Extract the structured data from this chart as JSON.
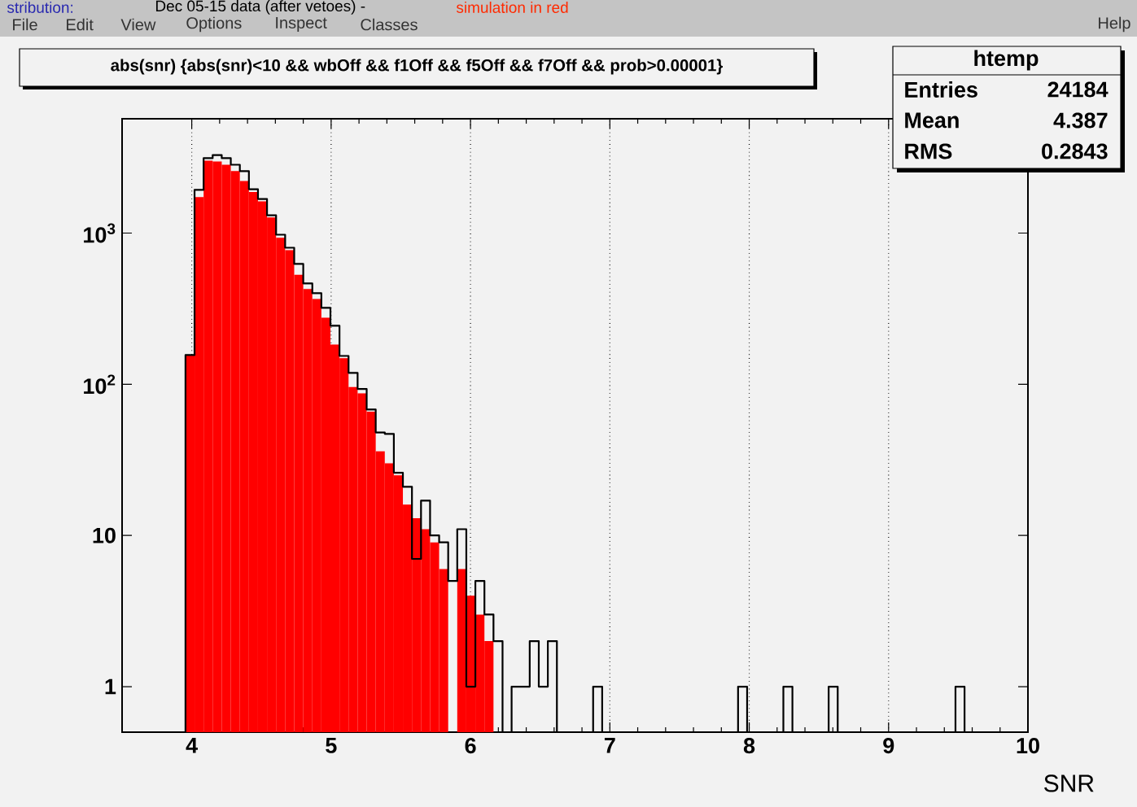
{
  "chart_data": {
    "type": "histogram",
    "title": "abs(snr) {abs(snr)<10 && wbOff && f1Off && f5Off && f7Off && prob>0.00001}",
    "xlabel": "SNR",
    "annotations": [
      "stribution:",
      "Dec 05-15 data (after vetoes) -",
      "simulation in red",
      "File",
      "Edit",
      "View",
      "Options",
      "Inspect",
      "Classes",
      "Help",
      "htemp",
      "Entries",
      "24184",
      "Mean",
      "4.387",
      "RMS",
      "0.2843"
    ],
    "bins": [
      3.955,
      4.02,
      4.085,
      4.15,
      4.215,
      4.28,
      4.345,
      4.41,
      4.475,
      4.54,
      4.605,
      4.67,
      4.735,
      4.8,
      4.865,
      4.93,
      4.995,
      5.06,
      5.125,
      5.19,
      5.255,
      5.32,
      5.385,
      5.45,
      5.515,
      5.58,
      5.645,
      5.71,
      5.775,
      5.84,
      5.905,
      5.97,
      6.035,
      6.1,
      6.165,
      6.23,
      6.295,
      6.36,
      6.425,
      6.49,
      6.555,
      6.62,
      6.685,
      6.75,
      6.815,
      6.88,
      6.945,
      7.01,
      7.075,
      7.14,
      7.205,
      7.27,
      7.335,
      7.4,
      7.465,
      7.53,
      7.595,
      7.66,
      7.725,
      7.79,
      7.855,
      7.92,
      7.985,
      8.05,
      8.115,
      8.18,
      8.245,
      8.31,
      8.375,
      8.44,
      8.505,
      8.57,
      8.635,
      8.7,
      8.765,
      8.83,
      8.895,
      8.96,
      9.025,
      9.09,
      9.155,
      9.22,
      9.285,
      9.35,
      9.415,
      9.48,
      9.545
    ],
    "series": [
      {
        "color": "#ff0000",
        "values": [
          156,
          1730,
          3010,
          2970,
          2830,
          2570,
          2210,
          1870,
          1620,
          1270,
          930,
          770,
          530,
          426,
          367,
          276,
          183,
          149,
          96,
          87,
          66,
          36,
          30,
          25,
          16,
          13,
          11,
          9,
          6,
          null,
          6,
          4,
          3,
          2,
          null,
          null,
          null,
          null,
          null,
          null,
          null,
          null,
          null,
          null,
          null,
          null,
          null,
          null,
          null,
          null,
          null,
          null,
          null,
          null,
          null,
          null,
          null,
          null,
          null,
          null,
          null,
          null,
          null,
          null,
          null,
          null,
          null,
          null,
          null,
          null,
          null,
          null,
          null,
          null,
          null,
          null,
          null,
          null,
          null,
          null,
          null,
          null,
          null,
          null,
          null,
          null
        ]
      },
      {
        "color": "#000000",
        "values": [
          156,
          1930,
          3130,
          3280,
          3130,
          2830,
          2570,
          1950,
          1680,
          1310,
          975,
          800,
          625,
          464,
          400,
          320,
          244,
          154,
          119,
          93,
          68,
          48,
          47,
          26,
          21,
          7,
          17,
          10,
          9,
          5,
          11,
          1,
          5,
          3,
          2,
          null,
          1,
          1,
          2,
          1,
          2,
          null,
          null,
          null,
          null,
          1,
          null,
          null,
          null,
          null,
          null,
          null,
          null,
          null,
          null,
          null,
          null,
          null,
          null,
          null,
          null,
          1,
          null,
          null,
          null,
          null,
          1,
          null,
          null,
          null,
          null,
          1,
          null,
          null,
          null,
          null,
          null,
          null,
          null,
          null,
          null,
          null,
          null,
          null,
          null,
          1
        ]
      }
    ],
    "xlim": [
      3.5,
      10
    ],
    "ylim": [
      0.5,
      5700
    ],
    "xticks": [
      4,
      5,
      6,
      7,
      8,
      9,
      10
    ],
    "yticks": [
      1,
      10,
      {
        "value": 100,
        "label": "10$^{2}$"
      },
      {
        "value": 1000,
        "label": "10$^{3}$"
      }
    ],
    "log": true,
    "grid": "x"
  }
}
